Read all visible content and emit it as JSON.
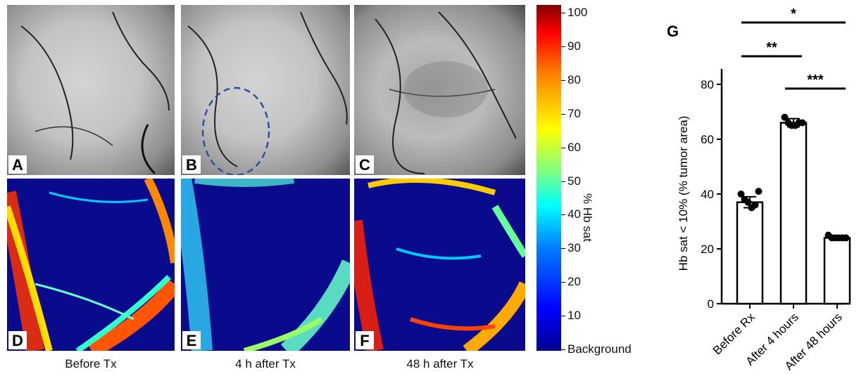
{
  "panels": {
    "top": [
      {
        "label": "A"
      },
      {
        "label": "B"
      },
      {
        "label": "C"
      }
    ],
    "bottom": [
      {
        "label": "D",
        "caption": "Before Tx"
      },
      {
        "label": "E",
        "caption": "4 h after Tx"
      },
      {
        "label": "F",
        "caption": "48 h after Tx"
      }
    ]
  },
  "colorbar": {
    "title": "% Hb sat",
    "ticks": [
      "100",
      "90",
      "80",
      "70",
      "60",
      "50",
      "40",
      "30",
      "20",
      "10",
      "Background"
    ],
    "colors": [
      "#00008f",
      "#0000ff",
      "#0080ff",
      "#00ffff",
      "#80ff80",
      "#ffff00",
      "#ff8000",
      "#ff0000",
      "#800000"
    ]
  },
  "chart_data": {
    "type": "bar",
    "panel_label": "G",
    "categories": [
      "Before Rx",
      "After 4 hours",
      "After 48 hours"
    ],
    "values": [
      37,
      66,
      24
    ],
    "error": [
      2,
      1.5,
      0.5
    ],
    "points": [
      [
        40,
        38,
        37,
        35,
        36,
        41
      ],
      [
        68,
        66,
        65,
        65,
        66,
        66
      ],
      [
        25,
        24,
        24,
        24,
        24,
        24
      ]
    ],
    "ylabel": "Hb sat < 10% (% tumor area)",
    "yticks": [
      0,
      20,
      40,
      60,
      80
    ],
    "ylim": [
      0,
      80
    ],
    "significance": [
      {
        "from": 0,
        "to": 2,
        "label": "*"
      },
      {
        "from": 0,
        "to": 1,
        "label": "**"
      },
      {
        "from": 1,
        "to": 2,
        "label": "***"
      }
    ]
  }
}
